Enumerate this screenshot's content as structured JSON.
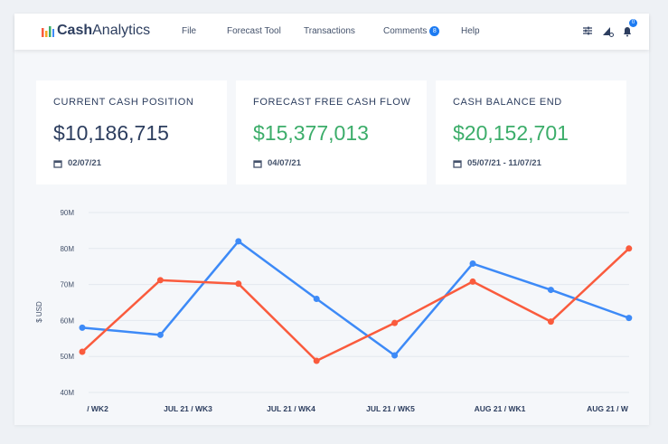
{
  "nav": {
    "brand_bold": "Cash",
    "brand_light": "Analytics",
    "items": [
      "File",
      "Forecast Tool",
      "Transactions",
      "Comments",
      "Help"
    ],
    "comments_badge": "8",
    "bell_badge": "0"
  },
  "cards": [
    {
      "title": "CURRENT CASH POSITION",
      "value": "$10,186,715",
      "date": "02/07/21"
    },
    {
      "title": "FORECAST FREE CASH FLOW",
      "value": "$15,377,013",
      "date": "04/07/21"
    },
    {
      "title": "CASH BALANCE END",
      "value": "$20,152,701",
      "date": "05/07/21 - 11/07/21"
    }
  ],
  "colors": {
    "blue": "#3d8af7",
    "orange": "#fa5b3d",
    "green": "#3cad6a"
  },
  "chart_data": {
    "type": "line",
    "ylabel": "$ USD",
    "ylim": [
      40,
      90
    ],
    "yticks": [
      "90M",
      "80M",
      "70M",
      "60M",
      "50M",
      "40M"
    ],
    "x_tick_labels": [
      "/ WK2",
      "JUL 21 / WK3",
      "JUL 21 / WK4",
      "JUL 21 / WK5",
      "AUG 21 / WK1",
      "AUG 21 / W"
    ],
    "grid": true,
    "series": [
      {
        "color": "#3d8af7",
        "values": [
          58,
          56,
          82,
          66,
          50.3,
          75.8,
          68.5,
          60.7
        ]
      },
      {
        "color": "#fa5b3d",
        "values": [
          51.3,
          71.2,
          70.2,
          48.8,
          59.3,
          70.8,
          59.7,
          80
        ]
      }
    ]
  }
}
